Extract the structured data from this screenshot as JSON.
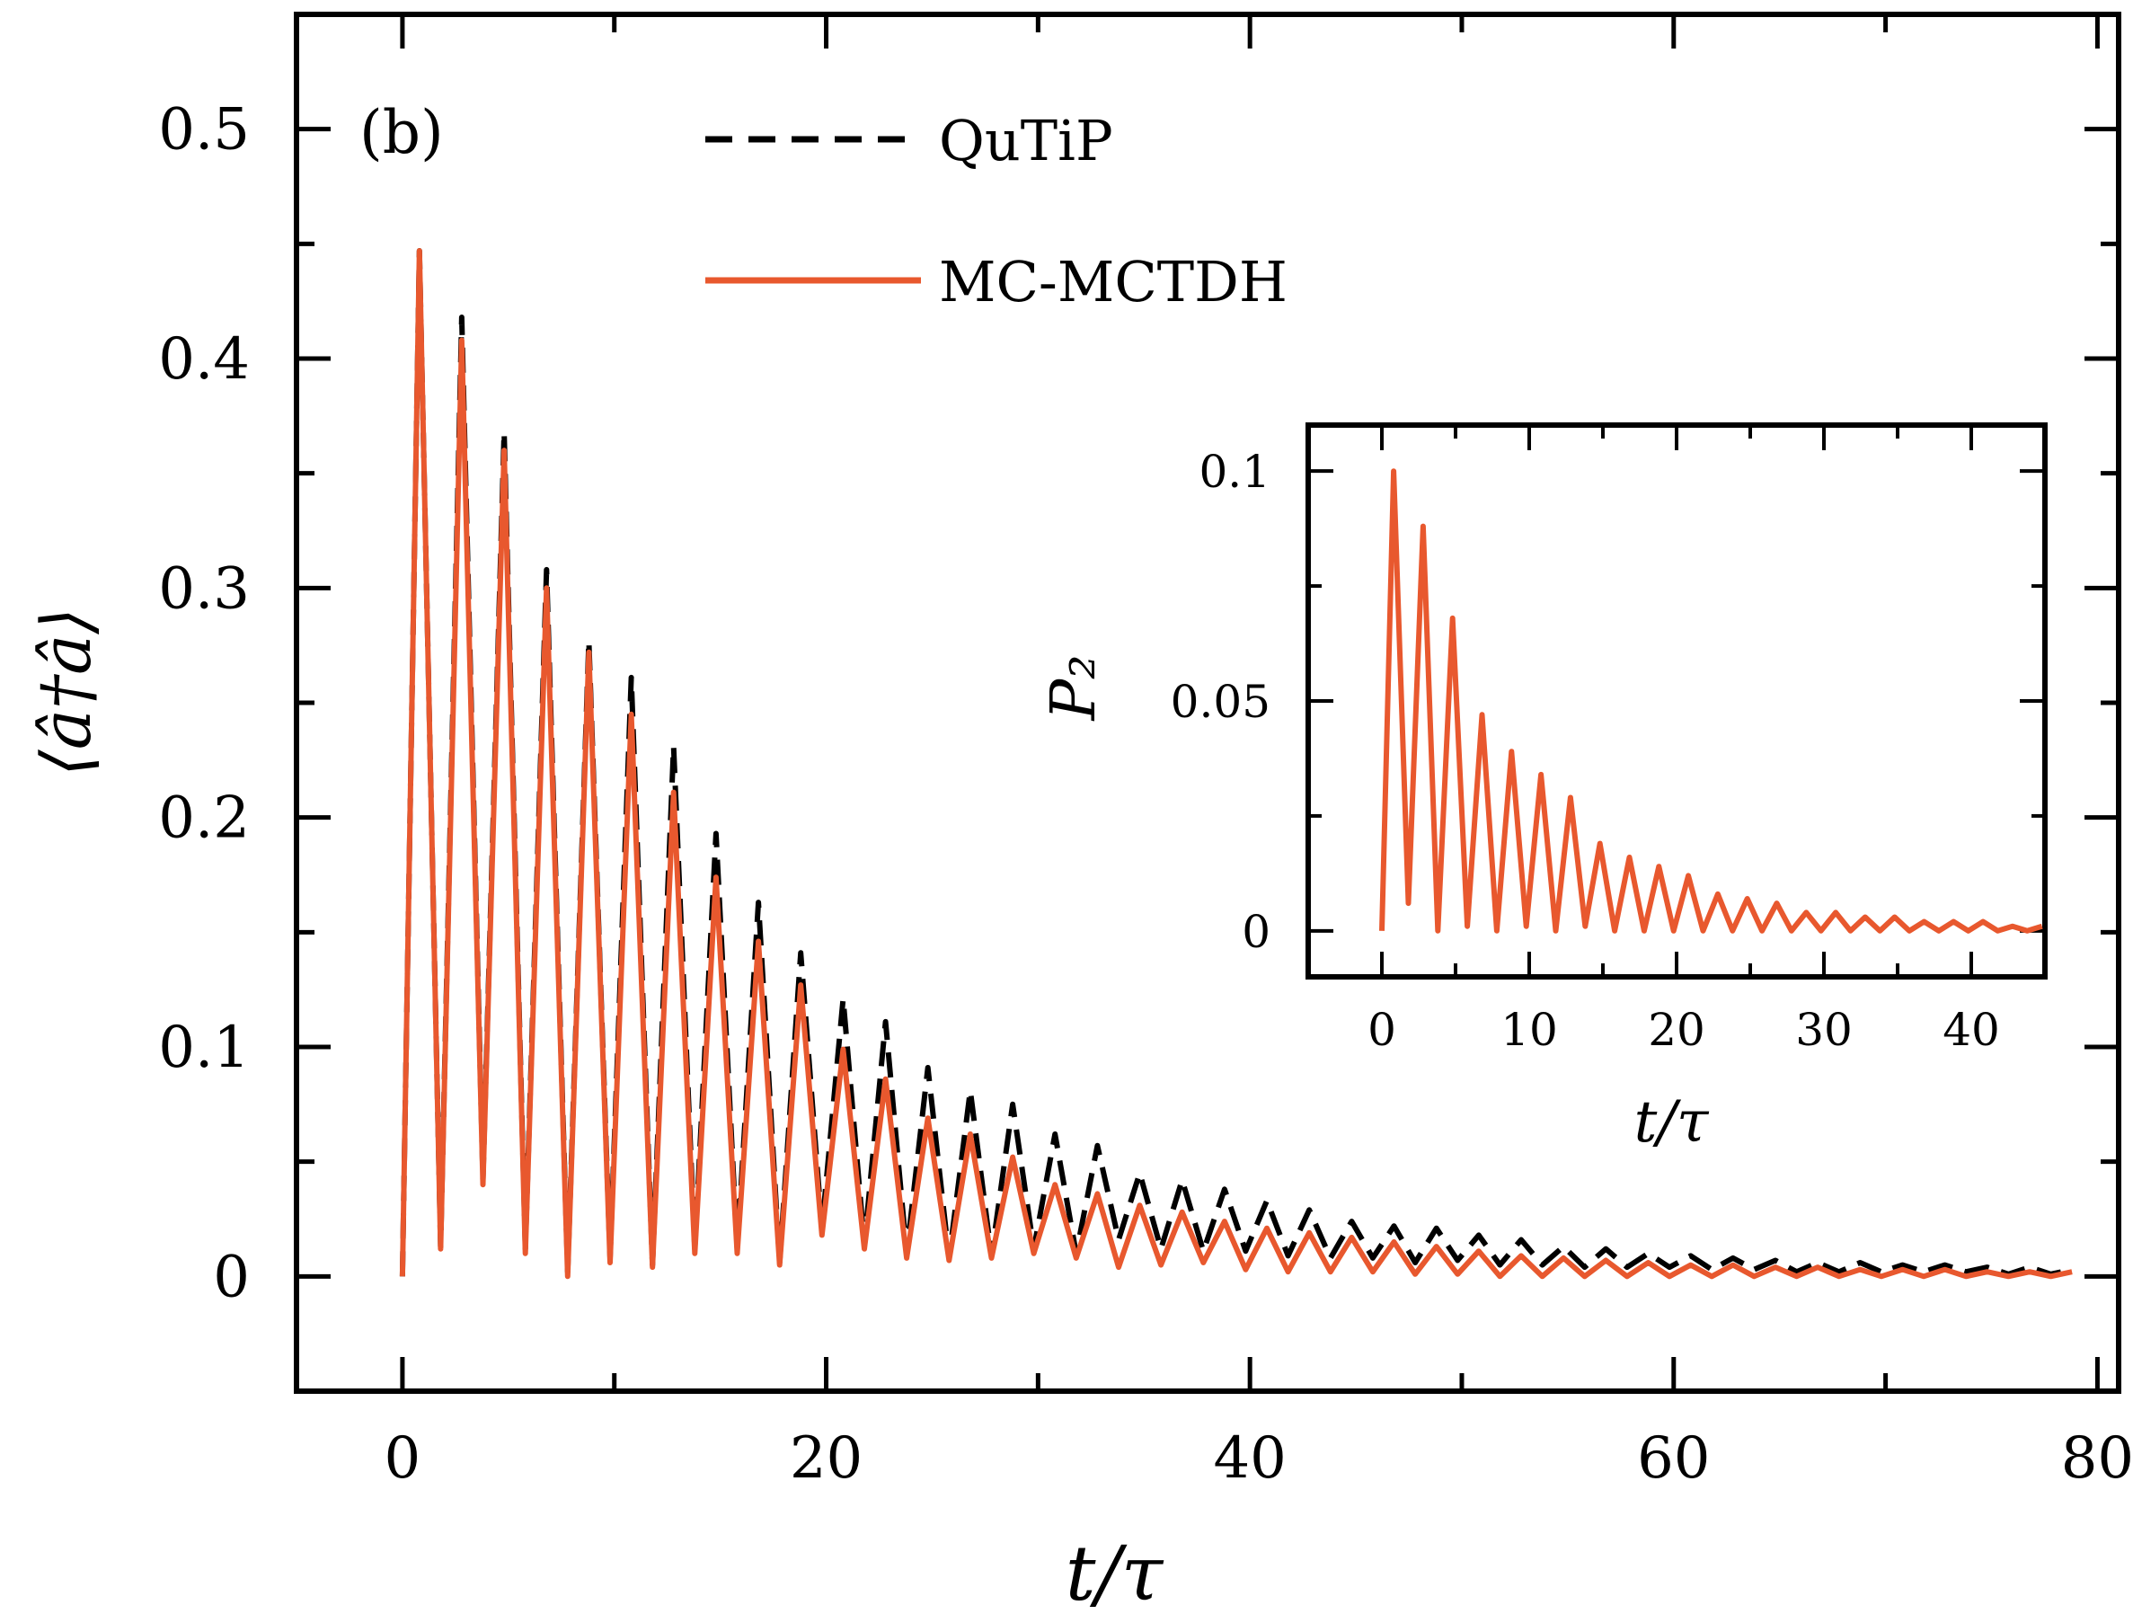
{
  "chart_data": [
    {
      "type": "line",
      "panel_label": "(b)",
      "xlabel": "t/τ",
      "ylabel": "⟨â†â⟩",
      "xlim": [
        -5,
        81
      ],
      "ylim": [
        -0.05,
        0.55
      ],
      "xticks": [
        0,
        20,
        40,
        60,
        80
      ],
      "xtick_labels": [
        "0",
        "20",
        "40",
        "60",
        "80"
      ],
      "yticks": [
        0,
        0.1,
        0.2,
        0.3,
        0.4,
        0.5
      ],
      "ytick_labels": [
        "0",
        "0.1",
        "0.2",
        "0.3",
        "0.4",
        "0.5"
      ],
      "legend_position": "top-center",
      "oscillation_period": 2.0,
      "t_max": 79,
      "series": [
        {
          "name": "QuTiP",
          "style": "dashed",
          "color": "#000000",
          "peak_t": [
            0.8,
            2.8,
            4.8,
            6.8,
            8.8,
            10.8,
            12.8,
            14.8,
            16.8,
            18.8,
            20.8,
            22.8,
            24.8,
            26.8,
            28.8,
            30.8,
            32.8,
            34.8,
            36.8,
            38.8,
            40.8,
            42.8,
            44.8,
            46.8,
            48.8,
            50.8,
            52.8,
            54.8,
            56.8,
            58.8,
            60.8,
            62.8,
            64.8,
            66.8,
            68.8,
            70.8,
            72.8,
            74.8,
            76.8,
            78.8
          ],
          "peak_values": [
            0.447,
            0.418,
            0.368,
            0.308,
            0.277,
            0.261,
            0.231,
            0.193,
            0.163,
            0.141,
            0.121,
            0.111,
            0.091,
            0.081,
            0.075,
            0.062,
            0.057,
            0.045,
            0.042,
            0.038,
            0.033,
            0.029,
            0.024,
            0.022,
            0.021,
            0.018,
            0.016,
            0.013,
            0.012,
            0.01,
            0.009,
            0.008,
            0.007,
            0.006,
            0.006,
            0.005,
            0.005,
            0.004,
            0.004,
            0.003
          ],
          "trough_values": [
            0.0,
            0.013,
            0.042,
            0.012,
            0.002,
            0.008,
            0.005,
            0.012,
            0.012,
            0.006,
            0.021,
            0.014,
            0.01,
            0.008,
            0.009,
            0.012,
            0.01,
            0.016,
            0.012,
            0.011,
            0.011,
            0.009,
            0.008,
            0.008,
            0.006,
            0.007,
            0.005,
            0.005,
            0.004,
            0.004,
            0.004,
            0.003,
            0.003,
            0.002,
            0.002,
            0.002,
            0.002,
            0.002,
            0.001,
            0.001
          ]
        },
        {
          "name": "MC-MCTDH",
          "style": "solid",
          "color": "#e8582e",
          "peak_t": [
            0.8,
            2.8,
            4.8,
            6.8,
            8.8,
            10.8,
            12.8,
            14.8,
            16.8,
            18.8,
            20.8,
            22.8,
            24.8,
            26.8,
            28.8,
            30.8,
            32.8,
            34.8,
            36.8,
            38.8,
            40.8,
            42.8,
            44.8,
            46.8,
            48.8,
            50.8,
            52.8,
            54.8,
            56.8,
            58.8,
            60.8,
            62.8,
            64.8,
            66.8,
            68.8,
            70.8,
            72.8,
            74.8,
            76.8,
            78.8
          ],
          "peak_values": [
            0.447,
            0.408,
            0.36,
            0.3,
            0.272,
            0.245,
            0.211,
            0.174,
            0.146,
            0.127,
            0.099,
            0.086,
            0.069,
            0.062,
            0.052,
            0.04,
            0.036,
            0.031,
            0.028,
            0.024,
            0.021,
            0.019,
            0.017,
            0.015,
            0.013,
            0.011,
            0.009,
            0.008,
            0.007,
            0.006,
            0.005,
            0.005,
            0.004,
            0.004,
            0.003,
            0.003,
            0.003,
            0.002,
            0.002,
            0.002
          ],
          "trough_values": [
            0.0,
            0.012,
            0.04,
            0.01,
            0.0,
            0.006,
            0.004,
            0.01,
            0.01,
            0.005,
            0.018,
            0.012,
            0.008,
            0.007,
            0.008,
            0.01,
            0.008,
            0.004,
            0.005,
            0.006,
            0.003,
            0.002,
            0.002,
            0.002,
            0.001,
            0.001,
            0.0,
            0.0,
            0.0,
            0.0,
            0.0,
            0.0,
            0.0,
            0.0,
            0.0,
            0.0,
            0.0,
            0.0,
            0.0,
            0.0
          ]
        }
      ]
    },
    {
      "type": "line",
      "inset": true,
      "xlabel": "t/τ",
      "ylabel": "P₂",
      "xlim": [
        -5,
        45
      ],
      "ylim": [
        -0.01,
        0.11
      ],
      "xticks": [
        0,
        10,
        20,
        30,
        40
      ],
      "xtick_labels": [
        "0",
        "10",
        "20",
        "30",
        "40"
      ],
      "yticks": [
        0,
        0.05,
        0.1
      ],
      "ytick_labels": [
        "0",
        "0.05",
        "0.1"
      ],
      "t_max": 45,
      "series": [
        {
          "name": "MC-MCTDH",
          "color": "#e8582e",
          "peak_t": [
            0.8,
            2.8,
            4.8,
            6.8,
            8.8,
            10.8,
            12.8,
            14.8,
            16.8,
            18.8,
            20.8,
            22.8,
            24.8,
            26.8,
            28.8,
            30.8,
            32.8,
            34.8,
            36.8,
            38.8,
            40.8,
            42.8,
            44.8
          ],
          "peak_values": [
            0.1,
            0.088,
            0.068,
            0.047,
            0.039,
            0.034,
            0.029,
            0.019,
            0.016,
            0.014,
            0.012,
            0.008,
            0.007,
            0.006,
            0.004,
            0.004,
            0.003,
            0.003,
            0.002,
            0.002,
            0.002,
            0.001,
            0.001
          ],
          "trough_values": [
            0.0,
            0.006,
            0.0,
            0.001,
            0.0,
            0.001,
            0.0,
            0.001,
            0.0,
            0.0,
            0.0,
            0.0,
            0.0,
            0.0,
            0.0,
            0.0,
            0.0,
            0.0,
            0.0,
            0.0,
            0.0,
            0.0,
            0.0
          ]
        }
      ]
    }
  ]
}
